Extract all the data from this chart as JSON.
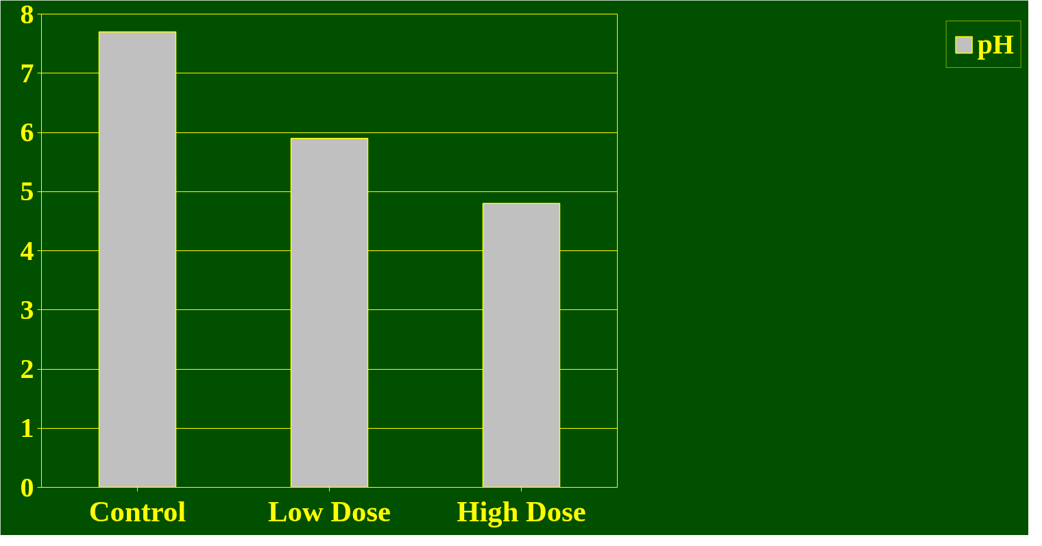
{
  "chart_data": {
    "type": "bar",
    "categories": [
      "Control",
      "Low Dose",
      "High Dose"
    ],
    "series": [
      {
        "name": "pH",
        "color": "#c0c0c0",
        "values": [
          7.7,
          5.9,
          4.8
        ]
      }
    ],
    "ylim": [
      0,
      8
    ],
    "yticks": [
      0,
      1,
      2,
      3,
      4,
      5,
      6,
      7,
      8
    ],
    "grid": "y",
    "legend": "right"
  }
}
